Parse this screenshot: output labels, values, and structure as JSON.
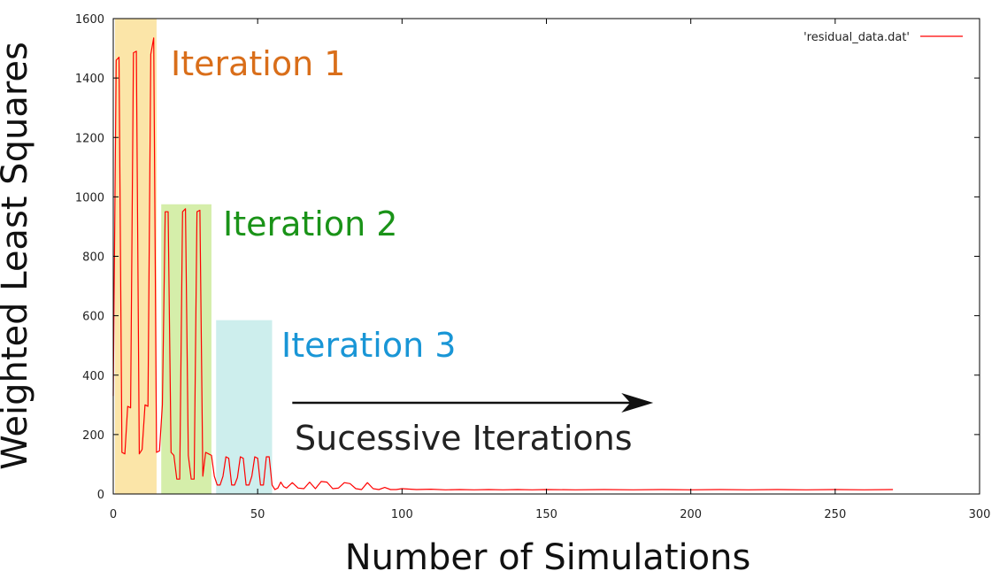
{
  "chart_data": {
    "type": "line",
    "title": "",
    "xlabel": "Number of Simulations",
    "ylabel": "Weighted Least Squares",
    "xlim": [
      0,
      300
    ],
    "ylim": [
      0,
      1600
    ],
    "x_ticks": [
      0,
      50,
      100,
      150,
      200,
      250,
      300
    ],
    "y_ticks": [
      0,
      200,
      400,
      600,
      800,
      1000,
      1200,
      1400,
      1600
    ],
    "grid": false,
    "legend_position": "top-right",
    "series": [
      {
        "name": "'residual_data.dat'",
        "color": "#ff0000",
        "x": [
          0,
          1,
          2,
          3,
          4,
          5,
          6,
          7,
          8,
          9,
          10,
          11,
          12,
          13,
          14,
          15,
          16,
          17,
          18,
          19,
          20,
          21,
          22,
          23,
          24,
          25,
          26,
          27,
          28,
          29,
          30,
          31,
          32,
          33,
          34,
          35,
          36,
          37,
          38,
          39,
          40,
          41,
          42,
          43,
          44,
          45,
          46,
          47,
          48,
          49,
          50,
          51,
          52,
          53,
          54,
          55,
          56,
          57,
          58,
          59,
          60,
          62,
          64,
          66,
          68,
          70,
          72,
          74,
          76,
          78,
          80,
          82,
          84,
          86,
          88,
          90,
          92,
          94,
          96,
          98,
          100,
          105,
          110,
          115,
          120,
          125,
          130,
          135,
          140,
          145,
          150,
          160,
          170,
          180,
          190,
          200,
          210,
          220,
          230,
          240,
          250,
          260,
          270
        ],
        "y": [
          330,
          1460,
          1470,
          140,
          135,
          295,
          290,
          1485,
          1490,
          135,
          150,
          300,
          295,
          1480,
          1535,
          140,
          145,
          300,
          950,
          950,
          140,
          130,
          50,
          50,
          950,
          960,
          130,
          50,
          50,
          950,
          955,
          60,
          140,
          135,
          130,
          60,
          30,
          30,
          60,
          125,
          120,
          30,
          30,
          55,
          125,
          120,
          30,
          30,
          60,
          125,
          120,
          30,
          30,
          125,
          125,
          30,
          15,
          20,
          40,
          25,
          20,
          38,
          20,
          18,
          40,
          18,
          42,
          40,
          18,
          20,
          38,
          35,
          18,
          15,
          38,
          18,
          15,
          22,
          15,
          15,
          18,
          15,
          16,
          14,
          15,
          14,
          15,
          14,
          15,
          14,
          15,
          14,
          15,
          14,
          15,
          14,
          15,
          14,
          15,
          14,
          15,
          14,
          15
        ]
      }
    ],
    "shaded_regions": [
      {
        "label": "Iteration 1",
        "x": [
          0,
          15
        ],
        "ymax": 1600,
        "fill": "#fbe5a8",
        "text_color": "#d96e1a"
      },
      {
        "label": "Iteration 2",
        "x": [
          16,
          34
        ],
        "ymax": 975,
        "fill": "#d5eeaa",
        "text_color": "#1a9318"
      },
      {
        "label": "Iteration 3",
        "x": [
          35,
          55
        ],
        "ymax": 585,
        "fill": "#cdeeed",
        "text_color": "#1996d6"
      }
    ],
    "annotations": [
      {
        "text": "Sucessive Iterations",
        "arrow_from_x": 62,
        "arrow_to_x": 187,
        "y": 305
      }
    ]
  }
}
